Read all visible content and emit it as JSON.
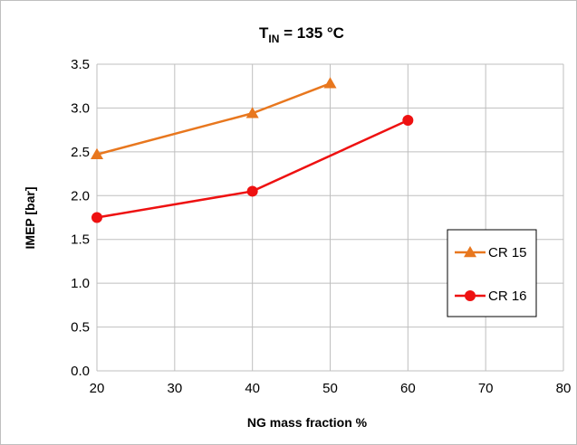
{
  "chart_data": {
    "type": "line",
    "title": {
      "main": "T",
      "subscript": "IN",
      "rest": " = 135  °C"
    },
    "xlabel": "NG mass fraction %",
    "ylabel": "IMEP [bar]",
    "xlim": [
      20,
      80
    ],
    "ylim": [
      0,
      3.5
    ],
    "xticks": [
      "20",
      "30",
      "40",
      "50",
      "60",
      "70",
      "80"
    ],
    "yticks": [
      "0.0",
      "0.5",
      "1.0",
      "1.5",
      "2.0",
      "2.5",
      "3.0",
      "3.5"
    ],
    "grid": true,
    "legend_position": "right",
    "series": [
      {
        "name": "CR 15",
        "color": "#E8771E",
        "marker": "triangle",
        "x": [
          20,
          40,
          50
        ],
        "y": [
          2.47,
          2.94,
          3.28
        ]
      },
      {
        "name": "CR 16",
        "color": "#EE1111",
        "marker": "circle",
        "x": [
          20,
          40,
          60
        ],
        "y": [
          1.75,
          2.05,
          2.86
        ]
      }
    ]
  }
}
